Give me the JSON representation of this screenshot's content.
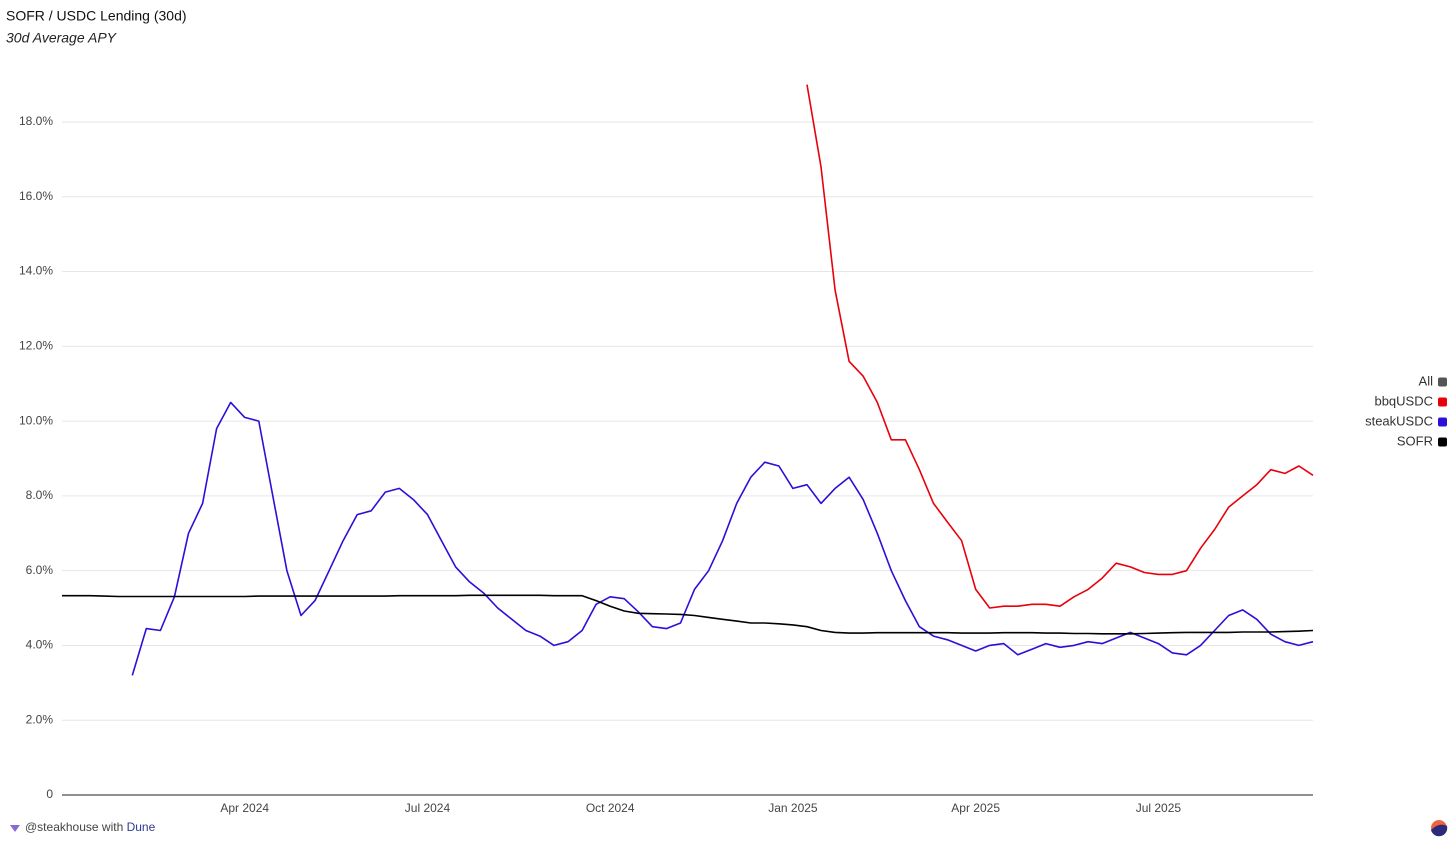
{
  "chart_data": {
    "type": "line",
    "title": "SOFR / USDC Lending (30d)",
    "subtitle": "30d Average APY",
    "categories": [
      null,
      null,
      null,
      null,
      null,
      null,
      null,
      null,
      null,
      null,
      null,
      null,
      null,
      "Apr 2024",
      null,
      null,
      null,
      null,
      null,
      null,
      null,
      null,
      null,
      null,
      null,
      null,
      "Jul 2024",
      null,
      null,
      null,
      null,
      null,
      null,
      null,
      null,
      null,
      null,
      null,
      null,
      "Oct 2024",
      null,
      null,
      null,
      null,
      null,
      null,
      null,
      null,
      null,
      null,
      null,
      null,
      "Jan 2025",
      null,
      null,
      null,
      null,
      null,
      null,
      null,
      null,
      null,
      null,
      null,
      null,
      "Apr 2025",
      null,
      null,
      null,
      null,
      null,
      null,
      null,
      null,
      null,
      null,
      null,
      null,
      "Jul 2025",
      null,
      null,
      null,
      null,
      null,
      null,
      null,
      null,
      null,
      null,
      null
    ],
    "series": [
      {
        "name": "bbqUSDC",
        "color": "#e8000b",
        "values": [
          null,
          null,
          null,
          null,
          null,
          null,
          null,
          null,
          null,
          null,
          null,
          null,
          null,
          null,
          null,
          null,
          null,
          null,
          null,
          null,
          null,
          null,
          null,
          null,
          null,
          null,
          null,
          null,
          null,
          null,
          null,
          null,
          null,
          null,
          null,
          null,
          null,
          null,
          null,
          null,
          null,
          null,
          null,
          null,
          null,
          null,
          null,
          null,
          null,
          null,
          null,
          null,
          null,
          19.0,
          16.8,
          13.5,
          11.6,
          11.2,
          10.5,
          9.5,
          9.5,
          8.7,
          7.8,
          7.3,
          6.8,
          5.5,
          5.0,
          5.05,
          5.05,
          5.1,
          5.1,
          5.05,
          5.3,
          5.5,
          5.8,
          6.2,
          6.1,
          5.95,
          5.9,
          5.9,
          6.0,
          6.6,
          7.1,
          7.7,
          8.0,
          8.3,
          8.7,
          8.6,
          8.8,
          8.55
        ]
      },
      {
        "name": "steakUSDC",
        "color": "#2a10d8",
        "values": [
          null,
          null,
          null,
          null,
          null,
          3.2,
          4.45,
          4.4,
          5.3,
          7.0,
          7.8,
          9.8,
          10.5,
          10.1,
          10.0,
          8.0,
          6.0,
          4.8,
          5.2,
          6.0,
          6.8,
          7.5,
          7.6,
          8.1,
          8.2,
          7.9,
          7.5,
          6.8,
          6.1,
          5.7,
          5.4,
          5.0,
          4.7,
          4.4,
          4.25,
          4.0,
          4.1,
          4.4,
          5.1,
          5.3,
          5.25,
          4.9,
          4.5,
          4.45,
          4.6,
          5.5,
          6.0,
          6.8,
          7.8,
          8.5,
          8.9,
          8.8,
          8.2,
          8.3,
          7.8,
          8.2,
          8.5,
          7.9,
          7.0,
          6.0,
          5.2,
          4.5,
          4.25,
          4.15,
          4.0,
          3.85,
          4.0,
          4.05,
          3.75,
          3.9,
          4.05,
          3.95,
          4.0,
          4.1,
          4.05,
          4.2,
          4.35,
          4.2,
          4.05,
          3.8,
          3.75,
          4.0,
          4.4,
          4.8,
          4.95,
          4.7,
          4.3,
          4.1,
          4.0,
          4.1
        ]
      },
      {
        "name": "SOFR",
        "color": "#000000",
        "values": [
          5.33,
          5.33,
          5.33,
          5.32,
          5.31,
          5.31,
          5.31,
          5.31,
          5.31,
          5.31,
          5.31,
          5.31,
          5.31,
          5.31,
          5.32,
          5.32,
          5.32,
          5.32,
          5.32,
          5.32,
          5.32,
          5.32,
          5.32,
          5.32,
          5.33,
          5.33,
          5.33,
          5.33,
          5.33,
          5.34,
          5.34,
          5.34,
          5.34,
          5.34,
          5.34,
          5.33,
          5.33,
          5.33,
          5.2,
          5.05,
          4.92,
          4.86,
          4.85,
          4.84,
          4.83,
          4.8,
          4.75,
          4.7,
          4.65,
          4.6,
          4.6,
          4.58,
          4.55,
          4.5,
          4.4,
          4.35,
          4.33,
          4.33,
          4.34,
          4.34,
          4.34,
          4.34,
          4.34,
          4.34,
          4.33,
          4.33,
          4.33,
          4.34,
          4.34,
          4.34,
          4.33,
          4.33,
          4.32,
          4.32,
          4.31,
          4.31,
          4.31,
          4.32,
          4.33,
          4.34,
          4.35,
          4.35,
          4.35,
          4.35,
          4.36,
          4.36,
          4.36,
          4.37,
          4.38,
          4.4
        ]
      }
    ],
    "ylim": [
      0,
      19.5
    ],
    "yticks": [
      0,
      {
        "value": 2,
        "label": "2.0%"
      },
      {
        "value": 4,
        "label": "4.0%"
      },
      {
        "value": 6,
        "label": "6.0%"
      },
      {
        "value": 8,
        "label": "8.0%"
      },
      {
        "value": 10,
        "label": "10.0%"
      },
      {
        "value": 12,
        "label": "12.0%"
      },
      {
        "value": 14,
        "label": "14.0%"
      },
      {
        "value": 16,
        "label": "16.0%"
      },
      {
        "value": 18,
        "label": "18.0%"
      }
    ],
    "grid": true,
    "legend": {
      "position": "right",
      "all_label": "All",
      "all_color": "#555555"
    }
  },
  "footer": {
    "author": "@steakhouse",
    "joiner": "with",
    "platform": "Dune"
  }
}
